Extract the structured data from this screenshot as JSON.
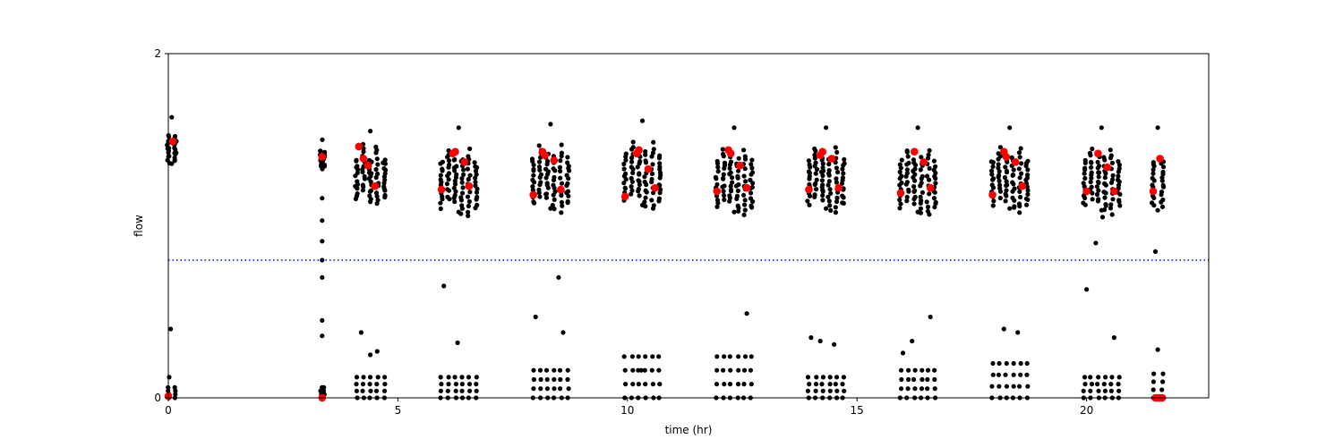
{
  "chart_data": {
    "type": "scatter",
    "title": "",
    "xlabel": "time (hr)",
    "ylabel": "flow",
    "xlim": [
      0,
      22.66
    ],
    "ylim": [
      0,
      2
    ],
    "xticks": [
      0,
      5,
      10,
      15,
      20
    ],
    "yticks": [
      0,
      2
    ],
    "grid": false,
    "legend": "none",
    "colors": {
      "points": "#000000",
      "highlights": "#ff0000",
      "threshold": "#0000ff"
    },
    "threshold": {
      "y": 0.8,
      "style": "dotted"
    },
    "clusters": [
      {
        "x": [
          0.0,
          0.15
        ],
        "high": [
          1.36,
          1.63
        ],
        "low": [
          0.0,
          0.06
        ],
        "extra_low": [
          [
            0.05,
            0.4
          ],
          [
            0.02,
            0.12
          ]
        ]
      },
      {
        "x": [
          3.33,
          3.38
        ],
        "high": [
          1.33,
          1.5
        ],
        "low": [
          0.0,
          0.06
        ],
        "extra_low": [
          [
            3.35,
            1.16
          ],
          [
            3.35,
            1.03
          ],
          [
            3.35,
            0.91
          ],
          [
            3.35,
            0.8
          ],
          [
            3.35,
            0.7
          ],
          [
            3.35,
            0.45
          ],
          [
            3.35,
            0.36
          ]
        ]
      },
      {
        "x": [
          4.1,
          4.7
        ],
        "high": [
          1.14,
          1.55
        ],
        "low": [
          0.0,
          0.12
        ],
        "extra_low": [
          [
            4.2,
            0.38
          ],
          [
            4.4,
            0.25
          ],
          [
            4.55,
            0.27
          ]
        ]
      },
      {
        "x": [
          5.95,
          6.7
        ],
        "high": [
          1.08,
          1.57
        ],
        "low": [
          0.0,
          0.12
        ],
        "extra_low": [
          [
            6.0,
            0.65
          ],
          [
            6.3,
            0.32
          ]
        ]
      },
      {
        "x": [
          7.95,
          8.7
        ],
        "high": [
          1.1,
          1.59
        ],
        "low": [
          0.0,
          0.16
        ],
        "extra_low": [
          [
            8.0,
            0.47
          ],
          [
            8.5,
            0.7
          ],
          [
            8.6,
            0.38
          ]
        ]
      },
      {
        "x": [
          9.95,
          10.7
        ],
        "high": [
          1.12,
          1.61
        ],
        "low": [
          0.0,
          0.24
        ],
        "extra_low": [
          [
            10.3,
            0.16
          ]
        ]
      },
      {
        "x": [
          11.95,
          12.7
        ],
        "high": [
          1.08,
          1.57
        ],
        "low": [
          0.0,
          0.24
        ],
        "extra_low": [
          [
            12.6,
            0.49
          ]
        ]
      },
      {
        "x": [
          13.95,
          14.7
        ],
        "high": [
          1.1,
          1.57
        ],
        "low": [
          0.0,
          0.12
        ],
        "extra_low": [
          [
            14.0,
            0.35
          ],
          [
            14.2,
            0.33
          ],
          [
            14.5,
            0.31
          ]
        ]
      },
      {
        "x": [
          15.95,
          16.7
        ],
        "high": [
          1.08,
          1.57
        ],
        "low": [
          0.0,
          0.16
        ],
        "extra_low": [
          [
            16.0,
            0.26
          ],
          [
            16.2,
            0.33
          ],
          [
            16.6,
            0.47
          ]
        ]
      },
      {
        "x": [
          17.95,
          18.7
        ],
        "high": [
          1.1,
          1.57
        ],
        "low": [
          0.0,
          0.2
        ],
        "extra_low": [
          [
            18.2,
            0.4
          ],
          [
            18.5,
            0.38
          ]
        ]
      },
      {
        "x": [
          19.95,
          20.7
        ],
        "high": [
          1.09,
          1.57
        ],
        "low": [
          0.0,
          0.12
        ],
        "extra_low": [
          [
            20.0,
            0.63
          ],
          [
            20.2,
            0.9
          ],
          [
            20.6,
            0.35
          ],
          [
            20.35,
            1.05
          ]
        ]
      },
      {
        "x": [
          21.45,
          21.65
        ],
        "high": [
          1.09,
          1.57
        ],
        "low": [
          0.0,
          0.14
        ],
        "extra_low": [
          [
            21.5,
            0.85
          ],
          [
            21.55,
            0.28
          ]
        ]
      }
    ],
    "highlight_points": [
      {
        "x": 0.1,
        "y": 1.49
      },
      {
        "x": 0.0,
        "y": 0.01
      },
      {
        "x": 3.35,
        "y": 1.4
      },
      {
        "x": 3.35,
        "y": 0.0
      },
      {
        "x": 4.15,
        "y": 1.46
      },
      {
        "x": 4.25,
        "y": 1.39
      },
      {
        "x": 4.35,
        "y": 1.35
      },
      {
        "x": 4.5,
        "y": 1.23
      },
      {
        "x": 5.95,
        "y": 1.21
      },
      {
        "x": 6.2,
        "y": 1.42
      },
      {
        "x": 6.25,
        "y": 1.43
      },
      {
        "x": 6.45,
        "y": 1.37
      },
      {
        "x": 6.55,
        "y": 1.23
      },
      {
        "x": 7.95,
        "y": 1.18
      },
      {
        "x": 8.15,
        "y": 1.43
      },
      {
        "x": 8.2,
        "y": 1.41
      },
      {
        "x": 8.4,
        "y": 1.38
      },
      {
        "x": 8.55,
        "y": 1.21
      },
      {
        "x": 9.95,
        "y": 1.17
      },
      {
        "x": 10.2,
        "y": 1.42
      },
      {
        "x": 10.25,
        "y": 1.44
      },
      {
        "x": 10.45,
        "y": 1.33
      },
      {
        "x": 10.6,
        "y": 1.22
      },
      {
        "x": 11.95,
        "y": 1.2
      },
      {
        "x": 12.2,
        "y": 1.44
      },
      {
        "x": 12.25,
        "y": 1.42
      },
      {
        "x": 12.45,
        "y": 1.35
      },
      {
        "x": 12.6,
        "y": 1.22
      },
      {
        "x": 13.95,
        "y": 1.21
      },
      {
        "x": 14.2,
        "y": 1.41
      },
      {
        "x": 14.25,
        "y": 1.43
      },
      {
        "x": 14.45,
        "y": 1.39
      },
      {
        "x": 14.6,
        "y": 1.22
      },
      {
        "x": 15.95,
        "y": 1.19
      },
      {
        "x": 16.25,
        "y": 1.43
      },
      {
        "x": 16.45,
        "y": 1.37
      },
      {
        "x": 16.6,
        "y": 1.22
      },
      {
        "x": 17.95,
        "y": 1.18
      },
      {
        "x": 18.2,
        "y": 1.43
      },
      {
        "x": 18.25,
        "y": 1.4
      },
      {
        "x": 18.45,
        "y": 1.37
      },
      {
        "x": 18.6,
        "y": 1.23
      },
      {
        "x": 20.0,
        "y": 1.2
      },
      {
        "x": 20.25,
        "y": 1.42
      },
      {
        "x": 20.45,
        "y": 1.34
      },
      {
        "x": 20.6,
        "y": 1.2
      },
      {
        "x": 21.45,
        "y": 1.2
      },
      {
        "x": 21.6,
        "y": 1.39
      },
      {
        "x": 21.5,
        "y": 0.0
      },
      {
        "x": 21.55,
        "y": 0.0
      },
      {
        "x": 21.6,
        "y": 0.0
      },
      {
        "x": 21.65,
        "y": 0.0
      }
    ]
  }
}
